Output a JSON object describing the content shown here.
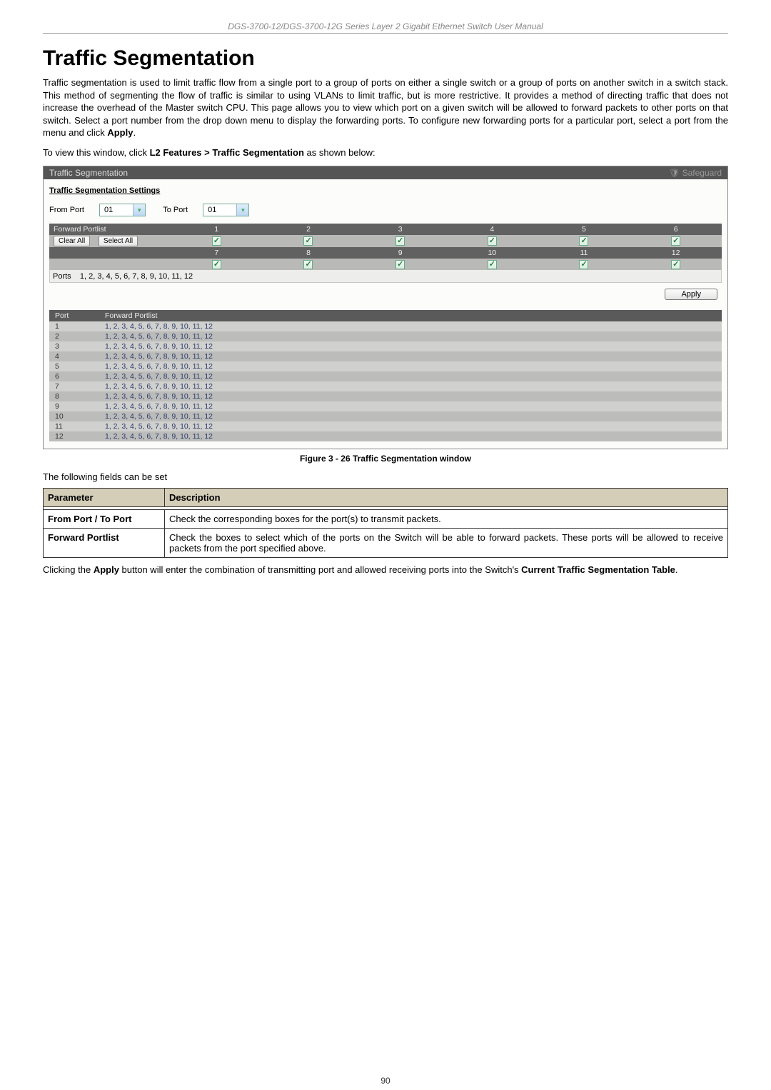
{
  "header": "DGS-3700-12/DGS-3700-12G Series Layer 2 Gigabit Ethernet Switch User Manual",
  "title": "Traffic Segmentation",
  "para1": "Traffic segmentation is used to limit traffic flow from a single port to a group of ports on either a single switch or a group of ports on another switch in a switch stack. This method of segmenting the flow of traffic is similar to using VLANs to limit traffic, but is more restrictive. It provides a method of directing traffic that does not increase the overhead of the Master switch CPU. This page allows you to view which port on a given switch will be allowed to forward packets to other ports on that switch. Select a port number from the drop down menu to display the forwarding ports. To configure new forwarding ports for a particular port, select a port from the menu and click ",
  "para1_bold": "Apply",
  "para1_tail": ".",
  "para2_lead": "To view this window, click ",
  "para2_bold": "L2 Features > Traffic Segmentation",
  "para2_tail": " as shown below:",
  "screenshot": {
    "titlebar_left": "Traffic Segmentation",
    "titlebar_right": "Safeguard",
    "section_label": "Traffic Segmentation Settings",
    "from_port_label": "From Port",
    "from_port_value": "01",
    "to_port_label": "To Port",
    "to_port_value": "01",
    "forward_portlist_label": "Forward Portlist",
    "clear_all": "Clear All",
    "select_all": "Select All",
    "row1": [
      "1",
      "2",
      "3",
      "4",
      "5",
      "6"
    ],
    "row2": [
      "7",
      "8",
      "9",
      "10",
      "11",
      "12"
    ],
    "ports_label": "Ports",
    "ports_value": "1, 2, 3, 4, 5, 6, 7, 8, 9, 10, 11, 12",
    "apply_label": "Apply",
    "result_headers": [
      "Port",
      "Forward Portlist"
    ],
    "result_rows": [
      [
        "1",
        "1, 2, 3, 4, 5, 6, 7, 8, 9, 10, 11, 12"
      ],
      [
        "2",
        "1, 2, 3, 4, 5, 6, 7, 8, 9, 10, 11, 12"
      ],
      [
        "3",
        "1, 2, 3, 4, 5, 6, 7, 8, 9, 10, 11, 12"
      ],
      [
        "4",
        "1, 2, 3, 4, 5, 6, 7, 8, 9, 10, 11, 12"
      ],
      [
        "5",
        "1, 2, 3, 4, 5, 6, 7, 8, 9, 10, 11, 12"
      ],
      [
        "6",
        "1, 2, 3, 4, 5, 6, 7, 8, 9, 10, 11, 12"
      ],
      [
        "7",
        "1, 2, 3, 4, 5, 6, 7, 8, 9, 10, 11, 12"
      ],
      [
        "8",
        "1, 2, 3, 4, 5, 6, 7, 8, 9, 10, 11, 12"
      ],
      [
        "9",
        "1, 2, 3, 4, 5, 6, 7, 8, 9, 10, 11, 12"
      ],
      [
        "10",
        "1, 2, 3, 4, 5, 6, 7, 8, 9, 10, 11, 12"
      ],
      [
        "11",
        "1, 2, 3, 4, 5, 6, 7, 8, 9, 10, 11, 12"
      ],
      [
        "12",
        "1, 2, 3, 4, 5, 6, 7, 8, 9, 10, 11, 12"
      ]
    ]
  },
  "figure_caption": "Figure 3 - 26 Traffic Segmentation window",
  "fields_line": "The following fields can be set",
  "param_table": {
    "headers": [
      "Parameter",
      "Description"
    ],
    "rows": [
      {
        "label": "From Port / To Port",
        "desc": "Check the corresponding boxes for the port(s) to transmit packets."
      },
      {
        "label": "Forward Portlist",
        "desc": "Check the boxes to select which of the ports on the Switch will be able to forward packets. These ports will be allowed to receive packets from the port specified above."
      }
    ]
  },
  "closing_lead": "Clicking the ",
  "closing_bold1": "Apply",
  "closing_mid": " button will enter the combination of transmitting port and allowed receiving ports into the Switch's ",
  "closing_bold2": "Current Traffic Segmentation Table",
  "closing_tail": ".",
  "page_number": "90"
}
